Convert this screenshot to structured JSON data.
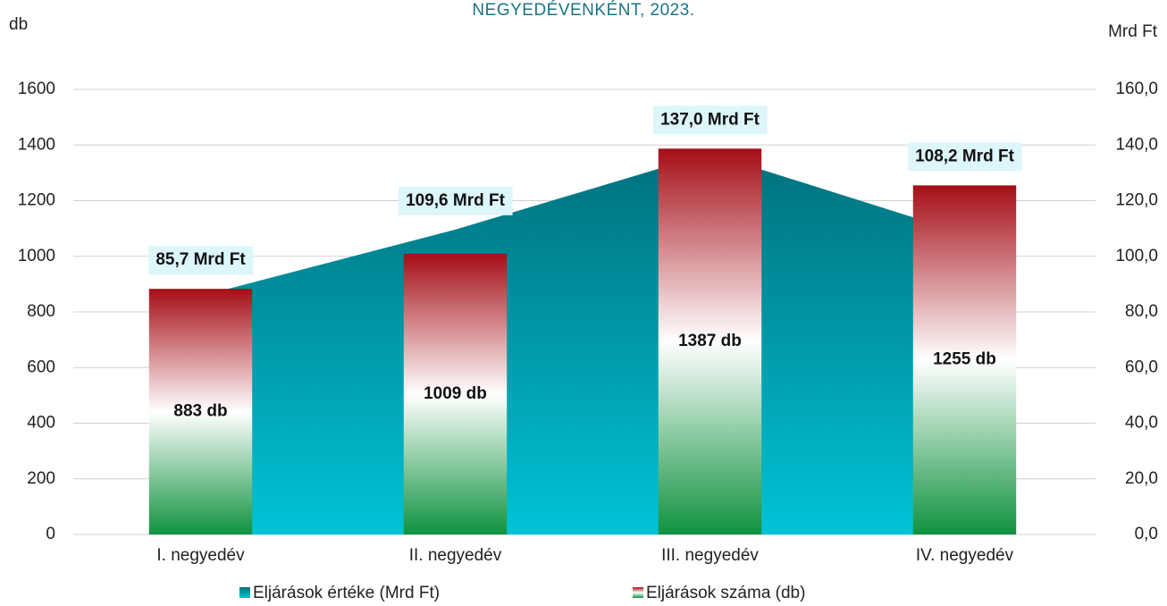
{
  "chart_data": {
    "type": "bar",
    "title": "NEGYEDÉVENKÉNT, 2023.",
    "y_label": "db",
    "y2_label": "Mrd Ft",
    "categories": [
      "I. negyedév",
      "II. negyedév",
      "III. negyedév",
      "IV. negyedév"
    ],
    "series": [
      {
        "name": "Eljárások értéke (Mrd Ft)",
        "type": "area",
        "axis": "y2",
        "gradient": [
          "#00707c",
          "#00c3d6"
        ],
        "values": [
          85.7,
          109.6,
          137.0,
          108.2
        ],
        "value_labels": [
          "85,7 Mrd Ft",
          "109,6 Mrd Ft",
          "137,0 Mrd Ft",
          "108,2 Mrd Ft"
        ]
      },
      {
        "name": "Eljárások száma (db)",
        "type": "bar",
        "gradient": [
          "#a50e17",
          "#ffffff",
          "#10923f"
        ],
        "values": [
          883,
          1009,
          1387,
          1255
        ],
        "value_labels": [
          "883 db",
          "1009 db",
          "1387 db",
          "1255 db"
        ]
      }
    ],
    "ylim": [
      0,
      1600
    ],
    "yticks": [
      0,
      200,
      400,
      600,
      800,
      1000,
      1200,
      1400,
      1600
    ],
    "y2lim": [
      0,
      160
    ],
    "y2ticks": [
      {
        "value": 0,
        "label": "0,0"
      },
      {
        "value": 20,
        "label": "20,0"
      },
      {
        "value": 40,
        "label": "40,0"
      },
      {
        "value": 60,
        "label": "60,0"
      },
      {
        "value": 80,
        "label": "80,0"
      },
      {
        "value": 100,
        "label": "100,0"
      },
      {
        "value": 120,
        "label": "120,0"
      },
      {
        "value": 140,
        "label": "140,0"
      },
      {
        "value": 160,
        "label": "160,0"
      }
    ],
    "grid": true,
    "legend": "bottom"
  }
}
